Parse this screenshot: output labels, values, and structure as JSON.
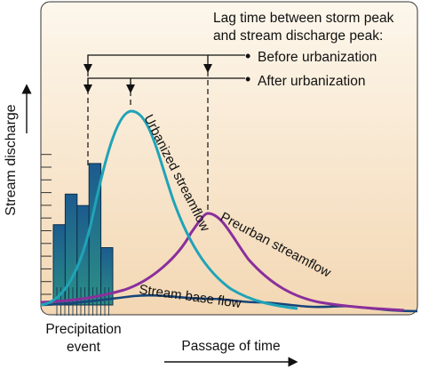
{
  "title_lines": [
    "Lag time between storm peak",
    "and stream discharge peak:"
  ],
  "legend": {
    "before": "Before urbanization",
    "after": "After urbanization"
  },
  "labels": {
    "urbanized": "Urbanized streamflow",
    "preurban": "Preurban streamflow",
    "base_flow": "Stream base flow"
  },
  "y_axis_label": "Stream discharge",
  "x_axis_label": "Passage of time",
  "precip_label_lines": [
    "Precipitation",
    "event"
  ],
  "colors": {
    "background_top": "#fdf6ea",
    "background_bottom": "#f3d9b8",
    "urbanized": "#1fa3b8",
    "preurban": "#8a2f9c",
    "base_flow": "#17457a",
    "bar_fill_top": "#1a5f8c",
    "bar_fill_bottom": "#2a8e86"
  },
  "precipitation_bars": [
    0.42,
    0.58,
    0.52,
    0.74,
    0.3
  ]
}
